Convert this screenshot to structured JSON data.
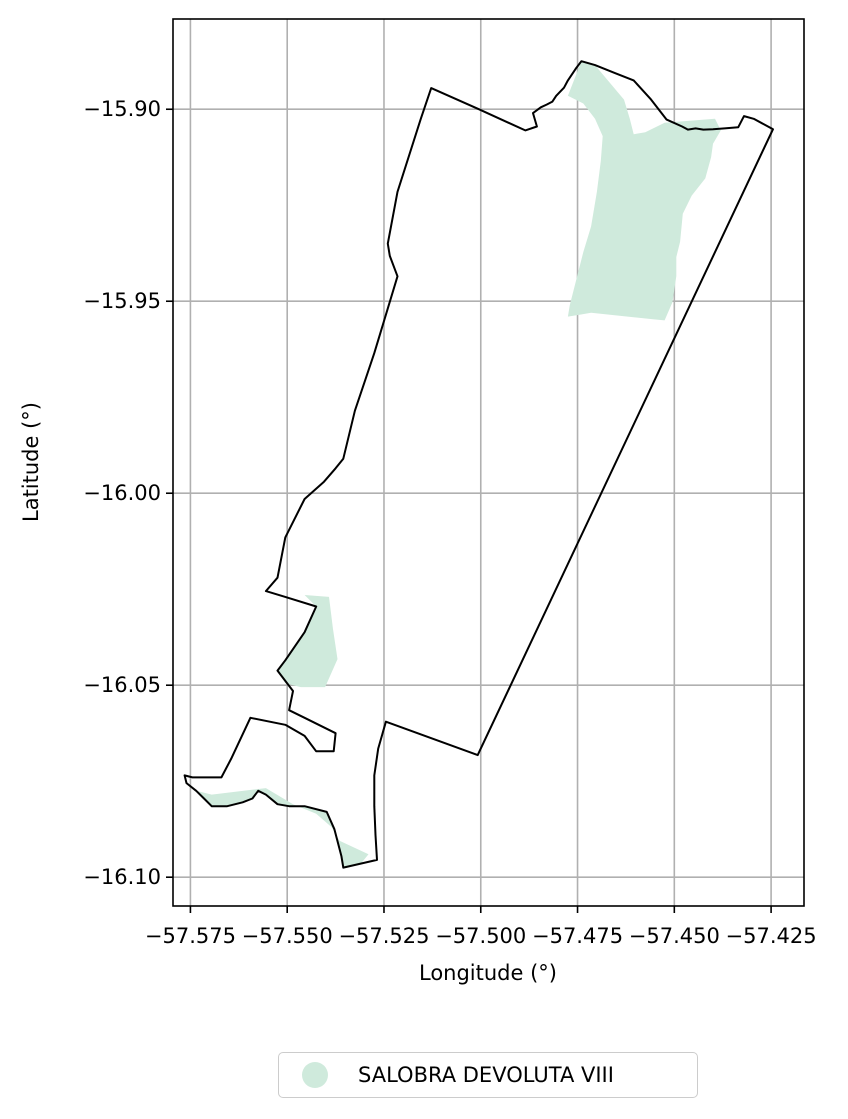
{
  "chart_data": {
    "type": "map",
    "xlabel": "Longitude (°)",
    "ylabel": "Latitude (°)",
    "xlim": [
      -57.5795,
      -57.4165
    ],
    "ylim": [
      -16.1075,
      -15.8765
    ],
    "x_ticks": [
      -57.575,
      -57.55,
      -57.525,
      -57.5,
      -57.475,
      -57.45,
      -57.425
    ],
    "x_tick_labels": [
      "−57.575",
      "−57.550",
      "−57.525",
      "−57.500",
      "−57.475",
      "−57.450",
      "−57.425"
    ],
    "y_ticks": [
      -15.9,
      -15.95,
      -16.0,
      -16.05,
      -16.1
    ],
    "y_tick_labels": [
      "−15.90",
      "−15.95",
      "−16.00",
      "−16.05",
      "−16.10"
    ],
    "grid": true,
    "legend_position": "bottom-center",
    "legend": [
      {
        "label": "SALOBRA DEVOLUTA VIII",
        "color": "#cfeadc",
        "marker": "circle"
      }
    ],
    "boundary": {
      "stroke": "#000000",
      "coords": [
        [
          -57.5128,
          -15.8945
        ],
        [
          -57.5005,
          -15.9
        ],
        [
          -57.4885,
          -15.9055
        ],
        [
          -57.4855,
          -15.9045
        ],
        [
          -57.4865,
          -15.901
        ],
        [
          -57.4845,
          -15.8995
        ],
        [
          -57.483,
          -15.8988
        ],
        [
          -57.4815,
          -15.898
        ],
        [
          -57.4805,
          -15.8965
        ],
        [
          -57.4785,
          -15.8944
        ],
        [
          -57.4775,
          -15.8925
        ],
        [
          -57.4755,
          -15.8895
        ],
        [
          -57.474,
          -15.8875
        ],
        [
          -57.4705,
          -15.8885
        ],
        [
          -57.4655,
          -15.8905
        ],
        [
          -57.4605,
          -15.8925
        ],
        [
          -57.456,
          -15.8975
        ],
        [
          -57.452,
          -15.9027
        ],
        [
          -57.448,
          -15.9045
        ],
        [
          -57.4465,
          -15.9053
        ],
        [
          -57.4445,
          -15.905
        ],
        [
          -57.4425,
          -15.9053
        ],
        [
          -57.44,
          -15.9052
        ],
        [
          -57.437,
          -15.905
        ],
        [
          -57.4335,
          -15.9047
        ],
        [
          -57.432,
          -15.9018
        ],
        [
          -57.4295,
          -15.9025
        ],
        [
          -57.4245,
          -15.9052
        ],
        [
          -57.5008,
          -16.0682
        ],
        [
          -57.5245,
          -16.0595
        ],
        [
          -57.5265,
          -16.0665
        ],
        [
          -57.5275,
          -16.0735
        ],
        [
          -57.5275,
          -16.0815
        ],
        [
          -57.5272,
          -16.089
        ],
        [
          -57.5268,
          -16.0955
        ],
        [
          -57.5355,
          -16.0975
        ],
        [
          -57.536,
          -16.0945
        ],
        [
          -57.5378,
          -16.0875
        ],
        [
          -57.5398,
          -16.083
        ],
        [
          -57.5455,
          -16.0815
        ],
        [
          -57.5495,
          -16.0815
        ],
        [
          -57.5525,
          -16.081
        ],
        [
          -57.5555,
          -16.0785
        ],
        [
          -57.5575,
          -16.0775
        ],
        [
          -57.559,
          -16.0795
        ],
        [
          -57.5615,
          -16.0805
        ],
        [
          -57.5655,
          -16.0815
        ],
        [
          -57.5695,
          -16.0815
        ],
        [
          -57.5715,
          -16.0795
        ],
        [
          -57.5735,
          -16.0775
        ],
        [
          -57.576,
          -16.0755
        ],
        [
          -57.5765,
          -16.0735
        ],
        [
          -57.5745,
          -16.074
        ],
        [
          -57.5705,
          -16.074
        ],
        [
          -57.567,
          -16.074
        ],
        [
          -57.5645,
          -16.0692
        ],
        [
          -57.5595,
          -16.0585
        ],
        [
          -57.5505,
          -16.0603
        ],
        [
          -57.5455,
          -16.0632
        ],
        [
          -57.5425,
          -16.0672
        ],
        [
          -57.538,
          -16.0672
        ],
        [
          -57.5375,
          -16.0625
        ],
        [
          -57.5455,
          -16.0585
        ],
        [
          -57.5495,
          -16.0565
        ],
        [
          -57.5485,
          -16.0515
        ],
        [
          -57.5525,
          -16.0462
        ],
        [
          -57.5505,
          -16.0435
        ],
        [
          -57.5455,
          -16.0362
        ],
        [
          -57.5425,
          -16.0295
        ],
        [
          -57.5505,
          -16.027
        ],
        [
          -57.5555,
          -16.0255
        ],
        [
          -57.5525,
          -16.022
        ],
        [
          -57.5505,
          -16.0115
        ],
        [
          -57.5455,
          -16.0015
        ],
        [
          -57.5405,
          -15.997
        ],
        [
          -57.5375,
          -15.9935
        ],
        [
          -57.5355,
          -15.991
        ],
        [
          -57.5325,
          -15.9785
        ],
        [
          -57.5275,
          -15.9635
        ],
        [
          -57.5215,
          -15.9435
        ],
        [
          -57.5235,
          -15.9382
        ],
        [
          -57.524,
          -15.935
        ],
        [
          -57.5215,
          -15.9215
        ],
        [
          -57.5155,
          -15.9025
        ]
      ]
    },
    "area_polygons": [
      [
        [
          -57.4775,
          -15.8965
        ],
        [
          -57.474,
          -15.8875
        ],
        [
          -57.4705,
          -15.8885
        ],
        [
          -57.463,
          -15.8975
        ],
        [
          -57.4615,
          -15.9025
        ],
        [
          -57.4605,
          -15.9065
        ],
        [
          -57.4575,
          -15.906
        ],
        [
          -57.4525,
          -15.9035
        ],
        [
          -57.4395,
          -15.9025
        ],
        [
          -57.438,
          -15.9055
        ],
        [
          -57.44,
          -15.909
        ],
        [
          -57.4405,
          -15.9125
        ],
        [
          -57.442,
          -15.918
        ],
        [
          -57.4455,
          -15.9225
        ],
        [
          -57.4478,
          -15.9272
        ],
        [
          -57.4485,
          -15.9345
        ],
        [
          -57.4495,
          -15.9385
        ],
        [
          -57.4495,
          -15.9435
        ],
        [
          -57.4505,
          -15.9503
        ],
        [
          -57.4525,
          -15.955
        ],
        [
          -57.4555,
          -15.9547
        ],
        [
          -57.4715,
          -15.953
        ],
        [
          -57.4745,
          -15.9535
        ],
        [
          -57.4775,
          -15.954
        ],
        [
          -57.477,
          -15.951
        ],
        [
          -57.4735,
          -15.9372
        ],
        [
          -57.4715,
          -15.9305
        ],
        [
          -57.47,
          -15.9215
        ],
        [
          -57.469,
          -15.9135
        ],
        [
          -57.4685,
          -15.907
        ],
        [
          -57.4705,
          -15.9025
        ],
        [
          -57.4735,
          -15.8985
        ],
        [
          -57.4775,
          -15.8965
        ]
      ],
      [
        [
          -57.5455,
          -16.0265
        ],
        [
          -57.5392,
          -16.027
        ],
        [
          -57.5382,
          -16.0352
        ],
        [
          -57.537,
          -16.0432
        ],
        [
          -57.5402,
          -16.0505
        ],
        [
          -57.5465,
          -16.0505
        ],
        [
          -57.5505,
          -16.0495
        ],
        [
          -57.5525,
          -16.0462
        ],
        [
          -57.5505,
          -16.0435
        ],
        [
          -57.5455,
          -16.0362
        ],
        [
          -57.5425,
          -16.0295
        ],
        [
          -57.5455,
          -16.0265
        ]
      ],
      [
        [
          -57.5735,
          -16.0775
        ],
        [
          -57.5715,
          -16.0795
        ],
        [
          -57.5695,
          -16.0815
        ],
        [
          -57.5655,
          -16.0815
        ],
        [
          -57.5615,
          -16.0805
        ],
        [
          -57.559,
          -16.0795
        ],
        [
          -57.5575,
          -16.0775
        ],
        [
          -57.5555,
          -16.0785
        ],
        [
          -57.5525,
          -16.081
        ],
        [
          -57.5495,
          -16.0815
        ],
        [
          -57.5455,
          -16.0815
        ],
        [
          -57.5398,
          -16.083
        ],
        [
          -57.5378,
          -16.0875
        ],
        [
          -57.536,
          -16.0945
        ],
        [
          -57.5355,
          -16.0975
        ],
        [
          -57.531,
          -16.0965
        ],
        [
          -57.529,
          -16.094
        ],
        [
          -57.5365,
          -16.0905
        ],
        [
          -57.5385,
          -16.087
        ],
        [
          -57.5425,
          -16.0835
        ],
        [
          -57.5485,
          -16.081
        ],
        [
          -57.5555,
          -16.0768
        ],
        [
          -57.5695,
          -16.0785
        ],
        [
          -57.5735,
          -16.0775
        ]
      ]
    ]
  }
}
